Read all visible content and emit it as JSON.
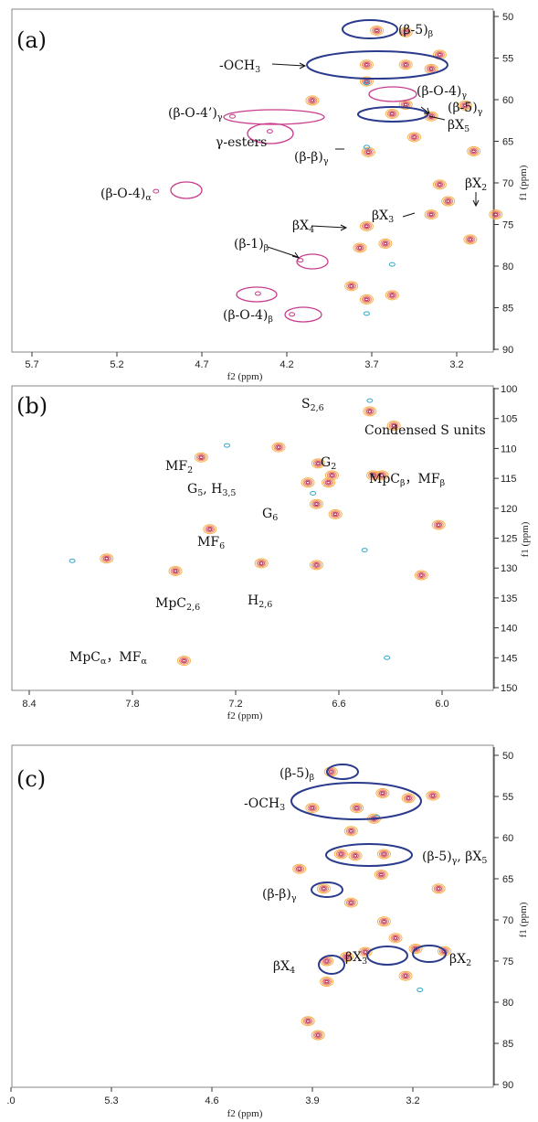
{
  "figure": {
    "panels": [
      {
        "id": "a",
        "letter": "(a)",
        "xlabel": "f2 (ppm)",
        "ylabel": "f1 (ppm)",
        "xticks": [
          "5.7",
          "5.2",
          "4.7",
          "4.2",
          "3.7",
          "3.2"
        ],
        "yticks": [
          "50",
          "55",
          "60",
          "65",
          "70",
          "75",
          "80",
          "85",
          "90"
        ],
        "labels": [
          {
            "main": "(β-5)",
            "sub": "β"
          },
          {
            "main": "-OCH",
            "sub": "3"
          },
          {
            "main": "(β-O-4)",
            "sub": "γ"
          },
          {
            "main": "(β-O-4’)",
            "sub": "γ"
          },
          {
            "main": "(β-5)",
            "sub": "γ"
          },
          {
            "main": "βX",
            "sub": "5"
          },
          {
            "main": "γ-esters",
            "sub": ""
          },
          {
            "main": "(β-β)",
            "sub": "γ"
          },
          {
            "main": "βX",
            "sub": "2"
          },
          {
            "main": "(β-O-4)",
            "sub": "α"
          },
          {
            "main": "βX",
            "sub": "3"
          },
          {
            "main": "βX",
            "sub": "4"
          },
          {
            "main": "(β-1)",
            "sub": "β"
          },
          {
            "main": "(β-O-4)",
            "sub": "β"
          }
        ]
      },
      {
        "id": "b",
        "letter": "(b)",
        "xlabel": "f2 (ppm)",
        "ylabel": "f1 (ppm)",
        "xticks": [
          "8.4",
          "7.8",
          "7.2",
          "6.6",
          "6.0"
        ],
        "yticks": [
          "100",
          "105",
          "110",
          "115",
          "120",
          "125",
          "130",
          "135",
          "140",
          "145",
          "150"
        ],
        "labels": [
          {
            "main": "S",
            "sub": "2,6"
          },
          {
            "main": "Condensed S units",
            "sub": ""
          },
          {
            "main": "MF",
            "sub": "2"
          },
          {
            "main": "G",
            "sub": "2"
          },
          {
            "main": "MpC",
            "sub": "β",
            "main2": "，MF",
            "sub2": "β"
          },
          {
            "main": "G",
            "sub": "5",
            "main2": ", H",
            "sub2": "3,5"
          },
          {
            "main": "G",
            "sub": "6"
          },
          {
            "main": "MF",
            "sub": "6"
          },
          {
            "main": "MpC",
            "sub": "2,6"
          },
          {
            "main": "H",
            "sub": "2,6"
          },
          {
            "main": "MpC",
            "sub": "α",
            "main2": "，MF",
            "sub2": "α"
          }
        ]
      },
      {
        "id": "c",
        "letter": "(c)",
        "xlabel": "f2 (ppm)",
        "ylabel": "f1 (ppm)",
        "xticks": [
          ".0",
          "5.3",
          "4.6",
          "3.9",
          "3.2"
        ],
        "yticks": [
          "50",
          "55",
          "60",
          "65",
          "70",
          "75",
          "80",
          "85",
          "90"
        ],
        "labels": [
          {
            "main": "(β-5)",
            "sub": "β"
          },
          {
            "main": "-OCH",
            "sub": "3"
          },
          {
            "main": "(β-5)",
            "sub": "γ",
            "main2": ", βX",
            "sub2": "5"
          },
          {
            "main": "(β-β)",
            "sub": "γ"
          },
          {
            "main": "βX",
            "sub": "4"
          },
          {
            "main": "βX",
            "sub": "3"
          },
          {
            "main": "βX",
            "sub": "2"
          }
        ]
      }
    ]
  },
  "chart_data": [
    {
      "type": "scatter",
      "title": "",
      "xlabel": "f2 (ppm)",
      "ylabel": "f1 (ppm)",
      "xlim": [
        6.0,
        2.8
      ],
      "ylim": [
        50,
        90
      ],
      "x_reversed": true,
      "y_reversed": true,
      "series": [
        {
          "name": "cross peaks",
          "color": "#f2a030",
          "points": [
            [
              3.67,
              51.7
            ],
            [
              3.5,
              51.9
            ],
            [
              3.3,
              54.6
            ],
            [
              3.73,
              55.8
            ],
            [
              3.5,
              55.8
            ],
            [
              3.35,
              56.3
            ],
            [
              3.73,
              57.8
            ],
            [
              4.05,
              60.1
            ],
            [
              3.5,
              60.6
            ],
            [
              3.15,
              60.7
            ],
            [
              3.58,
              61.7
            ],
            [
              3.35,
              62.0
            ],
            [
              3.45,
              64.5
            ],
            [
              3.72,
              66.3
            ],
            [
              3.1,
              66.2
            ],
            [
              3.3,
              70.2
            ],
            [
              3.25,
              72.2
            ],
            [
              3.35,
              73.8
            ],
            [
              2.97,
              73.8
            ],
            [
              3.73,
              75.2
            ],
            [
              3.62,
              77.3
            ],
            [
              3.77,
              77.8
            ],
            [
              3.12,
              76.8
            ],
            [
              3.82,
              82.4
            ],
            [
              3.73,
              84.0
            ],
            [
              3.58,
              83.5
            ]
          ]
        },
        {
          "name": "unassigned (magenta)",
          "color": "#c83c8c",
          "points": [
            [
              4.97,
              71.0
            ],
            [
              4.12,
              79.3
            ],
            [
              4.37,
              83.3
            ],
            [
              4.17,
              85.8
            ],
            [
              4.52,
              62.0
            ],
            [
              4.3,
              63.8
            ]
          ]
        },
        {
          "name": "negative",
          "color": "#38a8c8",
          "points": [
            [
              3.73,
              58.0
            ],
            [
              3.73,
              65.7
            ],
            [
              3.58,
              79.8
            ],
            [
              3.73,
              85.7
            ]
          ]
        }
      ]
    },
    {
      "type": "scatter",
      "title": "",
      "xlabel": "f2 (ppm)",
      "ylabel": "f1 (ppm)",
      "xlim": [
        8.6,
        5.5
      ],
      "ylim": [
        100,
        150
      ],
      "x_reversed": true,
      "y_reversed": true,
      "series": [
        {
          "name": "cross peaks",
          "color": "#f2a030",
          "points": [
            [
              6.42,
              103.8
            ],
            [
              6.28,
              106.2
            ],
            [
              6.95,
              109.8
            ],
            [
              7.4,
              111.5
            ],
            [
              6.72,
              112.5
            ],
            [
              6.64,
              114.5
            ],
            [
              6.66,
              115.7
            ],
            [
              6.78,
              115.7
            ],
            [
              6.35,
              114.5
            ],
            [
              6.4,
              114.5
            ],
            [
              6.73,
              119.3
            ],
            [
              6.62,
              121.0
            ],
            [
              7.35,
              123.5
            ],
            [
              6.02,
              122.8
            ],
            [
              7.95,
              128.4
            ],
            [
              7.55,
              130.5
            ],
            [
              7.05,
              129.2
            ],
            [
              6.73,
              129.5
            ],
            [
              6.12,
              131.2
            ],
            [
              7.5,
              145.5
            ]
          ]
        },
        {
          "name": "negative",
          "color": "#38a8c8",
          "points": [
            [
              6.42,
              102.0
            ],
            [
              6.75,
              117.5
            ],
            [
              8.15,
              128.8
            ],
            [
              7.25,
              109.5
            ],
            [
              6.32,
              145.0
            ],
            [
              6.45,
              127.0
            ]
          ]
        }
      ]
    },
    {
      "type": "scatter",
      "title": "",
      "xlabel": "f2 (ppm)",
      "ylabel": "f1 (ppm)",
      "xlim": [
        6.0,
        2.7
      ],
      "ylim": [
        50,
        90
      ],
      "x_reversed": true,
      "y_reversed": true,
      "series": [
        {
          "name": "cross peaks",
          "color": "#f2a030",
          "points": [
            [
              3.77,
              52.0
            ],
            [
              3.41,
              54.6
            ],
            [
              3.23,
              55.2
            ],
            [
              3.59,
              56.4
            ],
            [
              3.9,
              56.4
            ],
            [
              3.06,
              54.9
            ],
            [
              3.47,
              57.7
            ],
            [
              3.63,
              59.2
            ],
            [
              3.4,
              62.0
            ],
            [
              3.6,
              62.2
            ],
            [
              3.7,
              62.0
            ],
            [
              3.99,
              63.8
            ],
            [
              3.42,
              64.5
            ],
            [
              3.82,
              66.2
            ],
            [
              3.02,
              66.2
            ],
            [
              3.63,
              67.9
            ],
            [
              3.4,
              70.2
            ],
            [
              3.32,
              72.2
            ],
            [
              3.53,
              73.9
            ],
            [
              2.98,
              73.8
            ],
            [
              3.18,
              73.5
            ],
            [
              3.8,
              75.0
            ],
            [
              3.66,
              74.5
            ],
            [
              3.25,
              76.8
            ],
            [
              3.8,
              77.5
            ],
            [
              3.93,
              82.3
            ],
            [
              3.86,
              84.0
            ]
          ]
        },
        {
          "name": "negative",
          "color": "#38a8c8",
          "points": [
            [
              3.45,
              57.5
            ],
            [
              3.15,
              78.5
            ]
          ]
        }
      ]
    }
  ]
}
